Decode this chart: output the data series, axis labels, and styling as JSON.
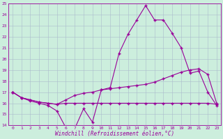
{
  "xlabel": "Windchill (Refroidissement éolien,°C)",
  "x": [
    0,
    1,
    2,
    3,
    4,
    5,
    6,
    7,
    8,
    9,
    10,
    11,
    12,
    13,
    14,
    15,
    16,
    17,
    18,
    19,
    20,
    21,
    22,
    23
  ],
  "line1": [
    17.0,
    16.5,
    16.2,
    16.0,
    15.8,
    15.3,
    13.8,
    13.7,
    15.5,
    14.3,
    17.2,
    17.4,
    20.5,
    22.2,
    23.5,
    24.8,
    23.5,
    23.5,
    22.3,
    21.0,
    18.7,
    18.9,
    17.0,
    15.8
  ],
  "line2": [
    17.0,
    16.5,
    16.3,
    16.1,
    16.0,
    15.9,
    16.0,
    16.0,
    16.0,
    16.0,
    16.0,
    16.0,
    16.0,
    16.0,
    16.0,
    16.0,
    16.0,
    16.0,
    16.0,
    16.0,
    16.0,
    16.0,
    16.0,
    15.9
  ],
  "line3": [
    17.0,
    16.5,
    16.3,
    16.1,
    16.0,
    15.9,
    16.3,
    16.7,
    16.9,
    17.0,
    17.2,
    17.3,
    17.4,
    17.5,
    17.6,
    17.7,
    17.9,
    18.2,
    18.5,
    18.8,
    19.0,
    19.1,
    18.6,
    16.0
  ],
  "line_color": "#990099",
  "bg_color": "#cceedd",
  "grid_color": "#aabbcc",
  "ylim": [
    14,
    25
  ],
  "yticks": [
    14,
    15,
    16,
    17,
    18,
    19,
    20,
    21,
    22,
    23,
    24,
    25
  ]
}
